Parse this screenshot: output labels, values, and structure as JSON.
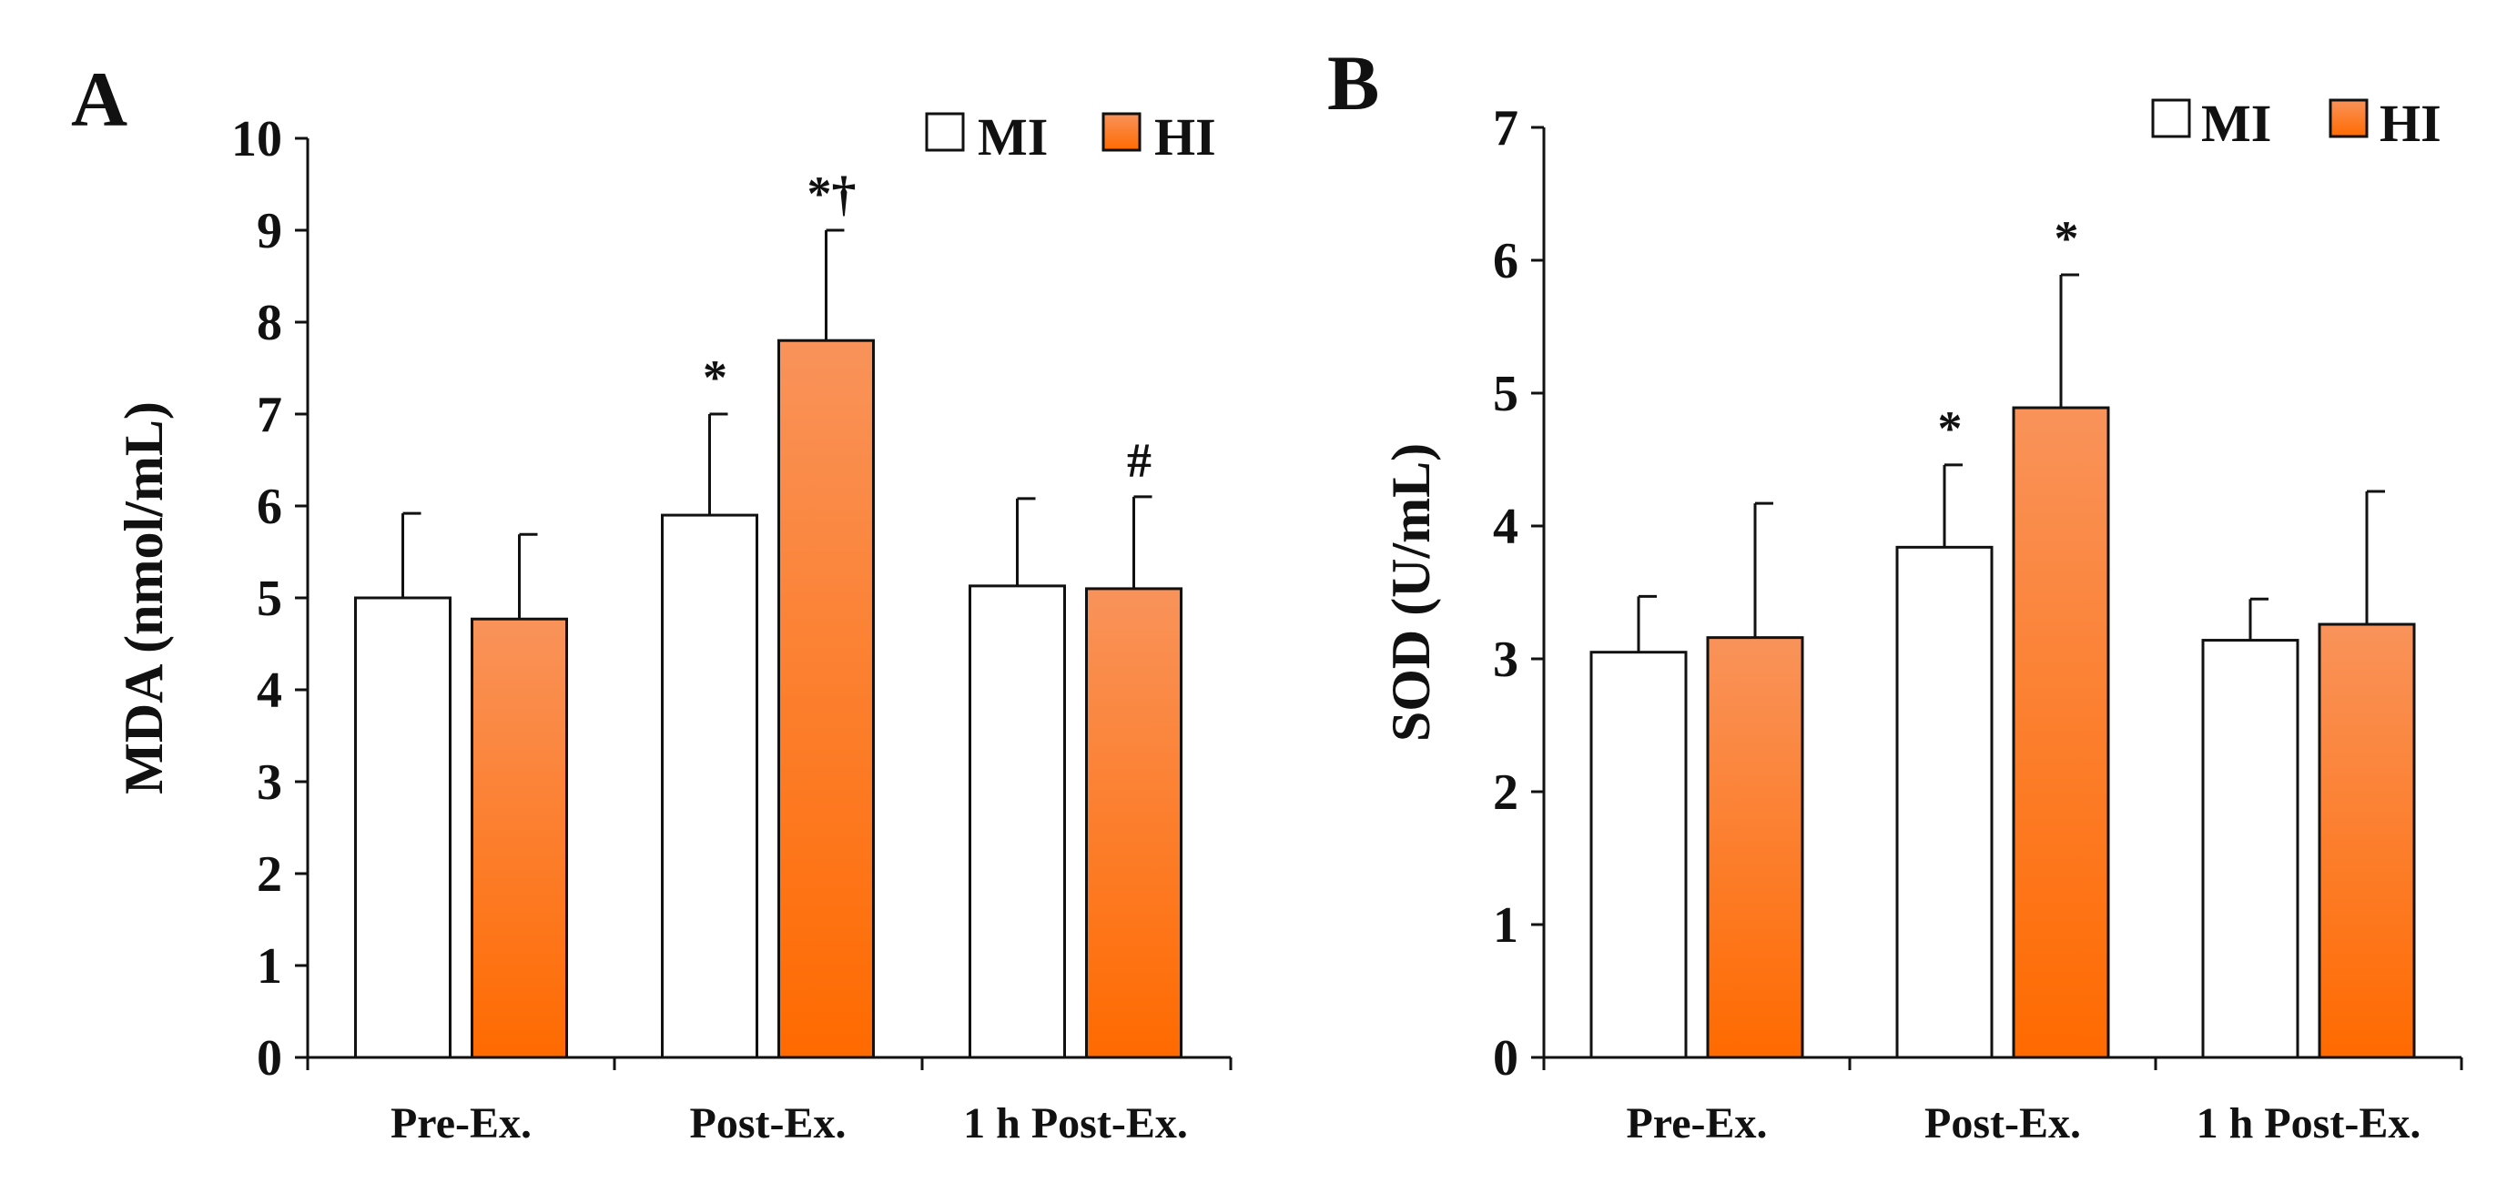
{
  "colors": {
    "hi_top": "#f9935a",
    "hi_bottom": "#ff6a00",
    "mi": "#ffffff",
    "ink": "#111111"
  },
  "chart_data": [
    {
      "panel_letter": "A",
      "type": "bar",
      "ylabel": "MDA (nmol/mL)",
      "ylim": [
        0,
        10
      ],
      "yticks": [
        "0",
        "1",
        "2",
        "3",
        "4",
        "5",
        "6",
        "7",
        "8",
        "9",
        "10"
      ],
      "categories": [
        "Pre-Ex.",
        "Post-Ex.",
        "1 h Post-Ex."
      ],
      "legend": {
        "placement": "top-right"
      },
      "series": [
        {
          "name": "MI",
          "values": [
            5.0,
            5.9,
            5.13
          ],
          "errors": [
            0.92,
            1.1,
            0.95
          ]
        },
        {
          "name": "HI",
          "values": [
            4.77,
            7.8,
            5.1
          ],
          "errors": [
            0.92,
            1.2,
            1.0
          ]
        }
      ],
      "annotations": [
        {
          "series": 0,
          "category": 1,
          "text": "*"
        },
        {
          "series": 1,
          "category": 1,
          "text": "*†"
        },
        {
          "series": 1,
          "category": 2,
          "text": "#"
        }
      ]
    },
    {
      "panel_letter": "B",
      "type": "bar",
      "ylabel": "SOD (U/mL)",
      "ylim": [
        0,
        7
      ],
      "yticks": [
        "0",
        "1",
        "2",
        "3",
        "4",
        "5",
        "6",
        "7"
      ],
      "categories": [
        "Pre-Ex.",
        "Post-Ex.",
        "1 h Post-Ex."
      ],
      "legend": {
        "placement": "top-right"
      },
      "series": [
        {
          "name": "MI",
          "values": [
            3.05,
            3.84,
            3.14
          ],
          "errors": [
            0.42,
            0.62,
            0.31
          ]
        },
        {
          "name": "HI",
          "values": [
            3.16,
            4.89,
            3.26
          ],
          "errors": [
            1.01,
            1.0,
            1.0
          ]
        }
      ],
      "annotations": [
        {
          "series": 0,
          "category": 1,
          "text": "*"
        },
        {
          "series": 1,
          "category": 1,
          "text": "*"
        }
      ]
    }
  ]
}
